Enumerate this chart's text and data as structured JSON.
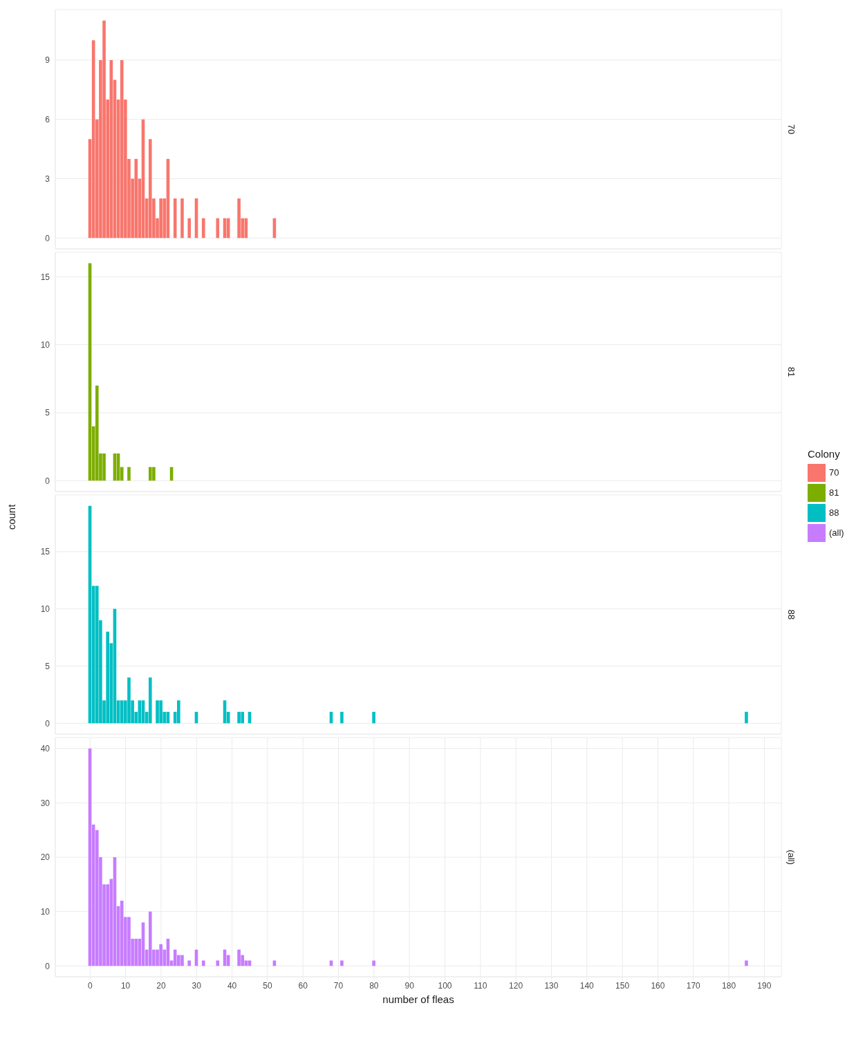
{
  "chart_data": [
    {
      "type": "histogram",
      "legend": "right",
      "legend_title": "Colony",
      "grid": true,
      "tick_labels": "y",
      "xlim": [
        -9.8,
        194.8
      ],
      "xticks": [
        0,
        10,
        20,
        30,
        40,
        50,
        60,
        70,
        80,
        90,
        100,
        110,
        120,
        130,
        140,
        150,
        160,
        170,
        180,
        190
      ],
      "ylim": [
        -0.55,
        11.55
      ],
      "yticks": [
        0,
        3,
        6,
        9
      ],
      "bins": [
        -0.5,
        0.5,
        1.5,
        2.5,
        3.5,
        4.5,
        5.5,
        6.5,
        7.5,
        8.5,
        9.5,
        10.5,
        11.5,
        12.5,
        13.5,
        14.5,
        15.5,
        16.5,
        17.5,
        18.5,
        19.5,
        20.5,
        21.5,
        22.5,
        23.5,
        24.5,
        25.5,
        26.5,
        27.5,
        28.5,
        29.5,
        30.5,
        31.5,
        32.5,
        33.5,
        34.5,
        35.5,
        36.5,
        37.5,
        38.5,
        39.5,
        40.5,
        41.5,
        42.5,
        43.5,
        44.5,
        45.5,
        46.5,
        47.5,
        48.5,
        49.5,
        50.5,
        51.5,
        52.5
      ],
      "series": [
        {
          "name": "70",
          "color": "#f8766d",
          "values": [
            5,
            10,
            6,
            9,
            11,
            7,
            9,
            8,
            7,
            9,
            7,
            4,
            3,
            4,
            3,
            6,
            2,
            5,
            2,
            1,
            2,
            2,
            4,
            0,
            2,
            0,
            2,
            0,
            1,
            0,
            2,
            0,
            1,
            0,
            0,
            0,
            1,
            0,
            1,
            1,
            0,
            0,
            2,
            1,
            1,
            0,
            0,
            0,
            0,
            0,
            0,
            0,
            1
          ]
        }
      ]
    },
    {
      "type": "histogram",
      "ylabel": "count",
      "grid": true,
      "tick_labels": "y",
      "xlim": [
        -9.8,
        194.8
      ],
      "xticks": [
        0,
        10,
        20,
        30,
        40,
        50,
        60,
        70,
        80,
        90,
        100,
        110,
        120,
        130,
        140,
        150,
        160,
        170,
        180,
        190
      ],
      "ylim": [
        -0.8,
        16.8
      ],
      "yticks": [
        0,
        5,
        10,
        15
      ],
      "bins": [
        -0.5,
        0.5,
        1.5,
        2.5,
        3.5,
        4.5,
        5.5,
        6.5,
        7.5,
        8.5,
        9.5,
        10.5,
        11.5,
        12.5,
        13.5,
        14.5,
        15.5,
        16.5,
        17.5,
        18.5,
        19.5,
        20.5,
        21.5,
        22.5,
        23.5
      ],
      "series": [
        {
          "name": "81",
          "color": "#7cae00",
          "values": [
            16,
            4,
            7,
            2,
            2,
            0,
            0,
            2,
            2,
            1,
            0,
            1,
            0,
            0,
            0,
            0,
            0,
            1,
            1,
            0,
            0,
            0,
            0,
            1
          ]
        }
      ]
    },
    {
      "type": "histogram",
      "grid": true,
      "tick_labels": "y",
      "xlim": [
        -9.8,
        194.8
      ],
      "xticks": [
        0,
        10,
        20,
        30,
        40,
        50,
        60,
        70,
        80,
        90,
        100,
        110,
        120,
        130,
        140,
        150,
        160,
        170,
        180,
        190
      ],
      "ylim": [
        -0.95,
        19.95
      ],
      "yticks": [
        0,
        5,
        10,
        15
      ],
      "bins": [
        -0.5,
        0.5,
        1.5,
        2.5,
        3.5,
        4.5,
        5.5,
        6.5,
        7.5,
        8.5,
        9.5,
        10.5,
        11.5,
        12.5,
        13.5,
        14.5,
        15.5,
        16.5,
        17.5,
        18.5,
        19.5,
        20.5,
        21.5,
        22.5,
        23.5,
        24.5,
        25.5,
        26.5,
        27.5,
        28.5,
        29.5,
        30.5,
        31.5,
        32.5,
        33.5,
        34.5,
        35.5,
        36.5,
        37.5,
        38.5,
        39.5,
        40.5,
        41.5,
        42.5,
        43.5,
        44.5,
        45.5,
        46.5,
        47.5,
        48.5,
        49.5,
        50.5,
        51.5,
        52.5,
        53.5,
        54.5,
        55.5,
        56.5,
        57.5,
        58.5,
        59.5,
        60.5,
        61.5,
        62.5,
        63.5,
        64.5,
        65.5,
        66.5,
        67.5,
        68.5,
        69.5,
        70.5,
        71.5,
        72.5,
        73.5,
        74.5,
        75.5,
        76.5,
        77.5,
        78.5,
        79.5,
        80.5,
        81.5,
        82.5,
        83.5,
        84.5,
        85.5,
        86.5,
        87.5,
        88.5,
        89.5,
        90.5,
        91.5,
        92.5,
        93.5,
        94.5,
        95.5,
        96.5,
        97.5,
        98.5,
        99.5,
        100.5,
        101.5,
        102.5,
        103.5,
        104.5,
        105.5,
        106.5,
        107.5,
        108.5,
        109.5,
        110.5,
        111.5,
        112.5,
        113.5,
        114.5,
        115.5,
        116.5,
        117.5,
        118.5,
        119.5,
        120.5,
        121.5,
        122.5,
        123.5,
        124.5,
        125.5,
        126.5,
        127.5,
        128.5,
        129.5,
        130.5,
        131.5,
        132.5,
        133.5,
        134.5,
        135.5,
        136.5,
        137.5,
        138.5,
        139.5,
        140.5,
        141.5,
        142.5,
        143.5,
        144.5,
        145.5,
        146.5,
        147.5,
        148.5,
        149.5,
        150.5,
        151.5,
        152.5,
        153.5,
        154.5,
        155.5,
        156.5,
        157.5,
        158.5,
        159.5,
        160.5,
        161.5,
        162.5,
        163.5,
        164.5,
        165.5,
        166.5,
        167.5,
        168.5,
        169.5,
        170.5,
        171.5,
        172.5,
        173.5,
        174.5,
        175.5,
        176.5,
        177.5,
        178.5,
        179.5,
        180.5,
        181.5,
        182.5,
        183.5,
        184.5,
        185.5
      ],
      "series": [
        {
          "name": "88",
          "color": "#00bfc4",
          "values": [
            19,
            12,
            12,
            9,
            2,
            8,
            7,
            10,
            2,
            2,
            2,
            4,
            2,
            1,
            2,
            2,
            1,
            4,
            0,
            2,
            2,
            1,
            1,
            0,
            1,
            2,
            0,
            0,
            0,
            0,
            1,
            0,
            0,
            0,
            0,
            0,
            0,
            0,
            2,
            1,
            0,
            0,
            1,
            1,
            0,
            1,
            0,
            0,
            0,
            0,
            0,
            0,
            0,
            0,
            0,
            0,
            0,
            0,
            0,
            0,
            0,
            0,
            0,
            0,
            0,
            0,
            0,
            0,
            1,
            0,
            0,
            1,
            0,
            0,
            0,
            0,
            0,
            0,
            0,
            0,
            1,
            0,
            0,
            0,
            0,
            0,
            0,
            0,
            0,
            0,
            0,
            0,
            0,
            0,
            0,
            0,
            0,
            0,
            0,
            0,
            0,
            0,
            0,
            0,
            0,
            0,
            0,
            0,
            0,
            0,
            0,
            0,
            0,
            0,
            0,
            0,
            0,
            0,
            0,
            0,
            0,
            0,
            0,
            0,
            0,
            0,
            0,
            0,
            0,
            0,
            0,
            0,
            0,
            0,
            0,
            0,
            0,
            0,
            0,
            0,
            0,
            0,
            0,
            0,
            0,
            0,
            0,
            0,
            0,
            0,
            0,
            0,
            0,
            0,
            0,
            0,
            0,
            0,
            0,
            0,
            0,
            0,
            0,
            0,
            0,
            0,
            0,
            0,
            0,
            0,
            0,
            0,
            0,
            0,
            0,
            0,
            0,
            0,
            0,
            0,
            0,
            0,
            0,
            0,
            0,
            1
          ]
        }
      ]
    },
    {
      "type": "histogram",
      "xlabel": "number of fleas",
      "grid": true,
      "xlim": [
        -9.8,
        194.8
      ],
      "xticks": [
        0,
        10,
        20,
        30,
        40,
        50,
        60,
        70,
        80,
        90,
        100,
        110,
        120,
        130,
        140,
        150,
        160,
        170,
        180,
        190
      ],
      "ylim": [
        -2,
        42
      ],
      "yticks": [
        0,
        10,
        20,
        30,
        40
      ],
      "bins": [
        -0.5,
        0.5,
        1.5,
        2.5,
        3.5,
        4.5,
        5.5,
        6.5,
        7.5,
        8.5,
        9.5,
        10.5,
        11.5,
        12.5,
        13.5,
        14.5,
        15.5,
        16.5,
        17.5,
        18.5,
        19.5,
        20.5,
        21.5,
        22.5,
        23.5,
        24.5,
        25.5,
        26.5,
        27.5,
        28.5,
        29.5,
        30.5,
        31.5,
        32.5,
        33.5,
        34.5,
        35.5,
        36.5,
        37.5,
        38.5,
        39.5,
        40.5,
        41.5,
        42.5,
        43.5,
        44.5,
        45.5,
        46.5,
        47.5,
        48.5,
        49.5,
        50.5,
        51.5,
        52.5,
        53.5,
        54.5,
        55.5,
        56.5,
        57.5,
        58.5,
        59.5,
        60.5,
        61.5,
        62.5,
        63.5,
        64.5,
        65.5,
        66.5,
        67.5,
        68.5,
        69.5,
        70.5,
        71.5,
        72.5,
        73.5,
        74.5,
        75.5,
        76.5,
        77.5,
        78.5,
        79.5,
        80.5,
        81.5,
        82.5,
        83.5,
        84.5,
        85.5,
        86.5,
        87.5,
        88.5,
        89.5,
        90.5,
        91.5,
        92.5,
        93.5,
        94.5,
        95.5,
        96.5,
        97.5,
        98.5,
        99.5,
        100.5,
        101.5,
        102.5,
        103.5,
        104.5,
        105.5,
        106.5,
        107.5,
        108.5,
        109.5,
        110.5,
        111.5,
        112.5,
        113.5,
        114.5,
        115.5,
        116.5,
        117.5,
        118.5,
        119.5,
        120.5,
        121.5,
        122.5,
        123.5,
        124.5,
        125.5,
        126.5,
        127.5,
        128.5,
        129.5,
        130.5,
        131.5,
        132.5,
        133.5,
        134.5,
        135.5,
        136.5,
        137.5,
        138.5,
        139.5,
        140.5,
        141.5,
        142.5,
        143.5,
        144.5,
        145.5,
        146.5,
        147.5,
        148.5,
        149.5,
        150.5,
        151.5,
        152.5,
        153.5,
        154.5,
        155.5,
        156.5,
        157.5,
        158.5,
        159.5,
        160.5,
        161.5,
        162.5,
        163.5,
        164.5,
        165.5,
        166.5,
        167.5,
        168.5,
        169.5,
        170.5,
        171.5,
        172.5,
        173.5,
        174.5,
        175.5,
        176.5,
        177.5,
        178.5,
        179.5,
        180.5,
        181.5,
        182.5,
        183.5,
        184.5,
        185.5
      ],
      "series": [
        {
          "name": "(all)",
          "color": "#c77cff",
          "values": [
            40,
            26,
            25,
            20,
            15,
            15,
            16,
            20,
            11,
            12,
            9,
            9,
            5,
            5,
            5,
            8,
            3,
            10,
            3,
            3,
            4,
            3,
            5,
            1,
            3,
            2,
            2,
            0,
            1,
            0,
            3,
            0,
            1,
            0,
            0,
            0,
            1,
            0,
            3,
            2,
            0,
            0,
            3,
            2,
            1,
            1,
            0,
            0,
            0,
            0,
            0,
            0,
            1,
            0,
            0,
            0,
            0,
            0,
            0,
            0,
            0,
            0,
            0,
            0,
            0,
            0,
            0,
            0,
            1,
            0,
            0,
            1,
            0,
            0,
            0,
            0,
            0,
            0,
            0,
            0,
            1,
            0,
            0,
            0,
            0,
            0,
            0,
            0,
            0,
            0,
            0,
            0,
            0,
            0,
            0,
            0,
            0,
            0,
            0,
            0,
            0,
            0,
            0,
            0,
            0,
            0,
            0,
            0,
            0,
            0,
            0,
            0,
            0,
            0,
            0,
            0,
            0,
            0,
            0,
            0,
            0,
            0,
            0,
            0,
            0,
            0,
            0,
            0,
            0,
            0,
            0,
            0,
            0,
            0,
            0,
            0,
            0,
            0,
            0,
            0,
            0,
            0,
            0,
            0,
            0,
            0,
            0,
            0,
            0,
            0,
            0,
            0,
            0,
            0,
            0,
            0,
            0,
            0,
            0,
            0,
            0,
            0,
            0,
            0,
            0,
            0,
            0,
            0,
            0,
            0,
            0,
            0,
            0,
            0,
            0,
            0,
            0,
            0,
            0,
            0,
            0,
            0,
            0,
            0,
            0,
            1
          ]
        }
      ]
    }
  ]
}
